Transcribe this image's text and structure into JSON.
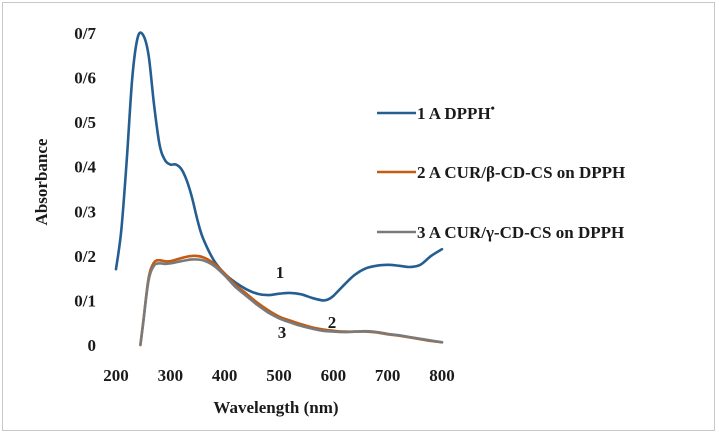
{
  "chart_data": {
    "type": "line",
    "title": "",
    "xlabel": "Wavelength (nm)",
    "ylabel": "Absorbance",
    "xlim": [
      200,
      800
    ],
    "ylim": [
      0,
      0.7
    ],
    "x_ticks": [
      "200",
      "300",
      "400",
      "500",
      "600",
      "700",
      "800"
    ],
    "y_ticks": [
      "0",
      "0/1",
      "0/2",
      "0/3",
      "0/4",
      "0/5",
      "0/6",
      "0/7"
    ],
    "grid": false,
    "legend_position": "right",
    "series": [
      {
        "name": "1 A DPPH",
        "superscript": "•",
        "curve_label": "1",
        "color": "#255e91",
        "points": [
          [
            200,
            0.17
          ],
          [
            210,
            0.26
          ],
          [
            220,
            0.42
          ],
          [
            230,
            0.6
          ],
          [
            240,
            0.69
          ],
          [
            250,
            0.695
          ],
          [
            260,
            0.65
          ],
          [
            270,
            0.54
          ],
          [
            280,
            0.45
          ],
          [
            290,
            0.415
          ],
          [
            300,
            0.405
          ],
          [
            310,
            0.405
          ],
          [
            320,
            0.395
          ],
          [
            330,
            0.37
          ],
          [
            340,
            0.33
          ],
          [
            350,
            0.28
          ],
          [
            360,
            0.24
          ],
          [
            380,
            0.19
          ],
          [
            400,
            0.16
          ],
          [
            420,
            0.14
          ],
          [
            440,
            0.125
          ],
          [
            460,
            0.115
          ],
          [
            480,
            0.112
          ],
          [
            500,
            0.115
          ],
          [
            520,
            0.117
          ],
          [
            540,
            0.114
          ],
          [
            560,
            0.106
          ],
          [
            580,
            0.1
          ],
          [
            590,
            0.102
          ],
          [
            600,
            0.11
          ],
          [
            620,
            0.135
          ],
          [
            640,
            0.158
          ],
          [
            660,
            0.172
          ],
          [
            680,
            0.178
          ],
          [
            700,
            0.18
          ],
          [
            720,
            0.178
          ],
          [
            740,
            0.175
          ],
          [
            760,
            0.18
          ],
          [
            780,
            0.2
          ],
          [
            800,
            0.215
          ]
        ]
      },
      {
        "name": "2 A CUR/β-CD-CS on DPPH",
        "curve_label": "2",
        "color": "#c55a11",
        "points": [
          [
            245,
            0.0
          ],
          [
            250,
            0.05
          ],
          [
            260,
            0.15
          ],
          [
            270,
            0.185
          ],
          [
            280,
            0.19
          ],
          [
            290,
            0.188
          ],
          [
            300,
            0.188
          ],
          [
            320,
            0.195
          ],
          [
            340,
            0.2
          ],
          [
            360,
            0.197
          ],
          [
            380,
            0.183
          ],
          [
            400,
            0.16
          ],
          [
            420,
            0.135
          ],
          [
            440,
            0.115
          ],
          [
            460,
            0.095
          ],
          [
            480,
            0.078
          ],
          [
            500,
            0.064
          ],
          [
            520,
            0.055
          ],
          [
            540,
            0.047
          ],
          [
            560,
            0.04
          ],
          [
            580,
            0.035
          ],
          [
            600,
            0.032
          ],
          [
            620,
            0.03
          ],
          [
            640,
            0.03
          ],
          [
            660,
            0.03
          ],
          [
            680,
            0.028
          ],
          [
            700,
            0.024
          ],
          [
            720,
            0.021
          ],
          [
            740,
            0.017
          ],
          [
            760,
            0.013
          ],
          [
            780,
            0.009
          ],
          [
            800,
            0.006
          ]
        ]
      },
      {
        "name": "3 A CUR/γ-CD-CS on DPPH",
        "curve_label": "3",
        "color": "#7a7a7a",
        "points": [
          [
            245,
            0.0
          ],
          [
            250,
            0.05
          ],
          [
            260,
            0.145
          ],
          [
            270,
            0.178
          ],
          [
            280,
            0.183
          ],
          [
            290,
            0.182
          ],
          [
            300,
            0.183
          ],
          [
            320,
            0.188
          ],
          [
            340,
            0.192
          ],
          [
            360,
            0.19
          ],
          [
            380,
            0.178
          ],
          [
            400,
            0.156
          ],
          [
            420,
            0.13
          ],
          [
            440,
            0.11
          ],
          [
            460,
            0.09
          ],
          [
            480,
            0.073
          ],
          [
            500,
            0.06
          ],
          [
            520,
            0.051
          ],
          [
            540,
            0.043
          ],
          [
            560,
            0.037
          ],
          [
            580,
            0.032
          ],
          [
            600,
            0.03
          ],
          [
            620,
            0.029
          ],
          [
            640,
            0.03
          ],
          [
            660,
            0.031
          ],
          [
            680,
            0.029
          ],
          [
            700,
            0.025
          ],
          [
            720,
            0.022
          ],
          [
            740,
            0.018
          ],
          [
            760,
            0.014
          ],
          [
            780,
            0.01
          ],
          [
            800,
            0.006
          ]
        ]
      }
    ]
  }
}
